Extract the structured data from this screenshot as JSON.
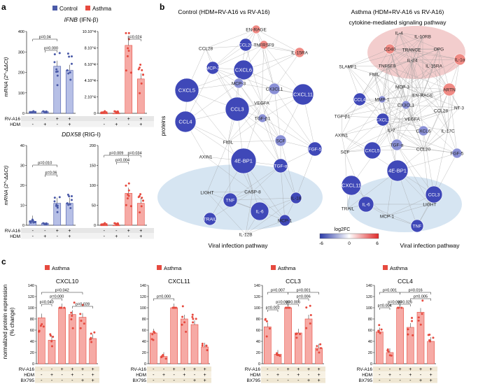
{
  "panel_labels": {
    "a": "a",
    "b": "b",
    "c": "c"
  },
  "colors": {
    "control": "#4a5aa8",
    "asthma": "#e64a3f",
    "asthma_fill": "#f6aaa5",
    "node_blue": "#3f48b8",
    "node_red": "#e8645c",
    "viral_ellipse": "#cfe0f0",
    "cyto_ellipse": "#f1c4c4"
  },
  "panel_a": {
    "legend": {
      "control": "Control",
      "asthma": "Asthma"
    },
    "ifnb": {
      "title_gene": "IFNB",
      "title_rest": " (IFN-β)",
      "ylabel": "mRNA (2^-ΔΔCt)",
      "control_ticks": [
        "0",
        "100",
        "200",
        "300",
        "400"
      ],
      "asthma_ticks": [
        "0",
        "2.10^4",
        "4.10^4",
        "6.10^4",
        "8.10^4",
        "10.10^4"
      ],
      "pvalues": [
        "p=0.04",
        "p=0.000",
        "p=0.024"
      ],
      "control_bars": [
        10,
        8,
        230,
        210
      ],
      "asthma_bars": [
        0,
        0,
        83000,
        42000
      ]
    },
    "ddx58": {
      "title_gene": "DDX58",
      "title_rest": " (RIG-I)",
      "ylabel": "mRNA (2^-ΔΔCt)",
      "control_ticks": [
        "0",
        "10",
        "20",
        "30",
        "40"
      ],
      "asthma_ticks": [
        "0",
        "50",
        "100",
        "150",
        "200"
      ],
      "pvalues": [
        "p=0.010",
        "p=0.06",
        "p=0.009",
        "p=0.004",
        "p=0.034"
      ],
      "control_bars": [
        2,
        1,
        11,
        11
      ],
      "asthma_bars": [
        0,
        0,
        80,
        55
      ]
    },
    "rows": [
      {
        "label": "RV-A16",
        "signs": [
          "-",
          "-",
          "+",
          "+"
        ]
      },
      {
        "label": "HDM",
        "signs": [
          "-",
          "+",
          "-",
          "+"
        ]
      }
    ]
  },
  "panel_b": {
    "title_left": "Control (HDM+RV-A16 vs RV-A16)",
    "title_right": "Asthma (HDM+RV-A16 vs RV-A16)",
    "cyto_label": "cytokine-mediated signaling pathway",
    "viral_label_left": "Viral infection pathway",
    "viral_label_right": "Viral infection pathway",
    "axis_label": "proteins",
    "colorbar": {
      "title": "log2FC",
      "ticks": [
        "-6",
        "0",
        "6"
      ]
    },
    "left_nodes": [
      "EN-RAGE",
      "CCL20",
      "TNFRSF9",
      "IL-15RA",
      "CCL28",
      "MCP-2",
      "CXCL6",
      "MCP-3",
      "CX3CL1",
      "CXCL5",
      "CCL3",
      "VEGFA",
      "CXCL11",
      "CCL4",
      "TGF-β1",
      "Flt3L",
      "SCF",
      "AXIN1",
      "FGF-5",
      "4E-BP1",
      "TGF-α",
      "LIGHT",
      "CASP-8",
      "TNF",
      "IL-6",
      "IL-18",
      "TRAIL",
      "MCP-1",
      "IL-12B"
    ],
    "right_nodes": [
      "IL-4",
      "IL-10RB",
      "CD40",
      "TRANCE",
      "OPG",
      "IL-24",
      "IL-1α",
      "TNFSF9",
      "IL-15RA",
      "SLAMF1",
      "Flt3L",
      "MCP-3",
      "EN-RAGE",
      "ARTN",
      "MMP-1",
      "CCL4",
      "CX3CL1",
      "NT-3",
      "TGF-β1",
      "CXCL1",
      "VEGFA",
      "CCL28",
      "IL-7",
      "CXCL6",
      "IL-17C",
      "AXIN1",
      "TGF-α",
      "SCF",
      "CXCL5",
      "CCL20",
      "FGF-5",
      "4E-BP1",
      "CXCL11",
      "CCL3",
      "IL-6",
      "LIGHT",
      "TRAIL",
      "MCP-1",
      "TNF"
    ]
  },
  "panel_c": {
    "legend": "Asthma",
    "ylabel": "normalized protein expression",
    "ylabel2": "(% change)",
    "ticks": [
      "0",
      "20",
      "40",
      "60",
      "80",
      "100",
      "120",
      "140"
    ],
    "rows": [
      {
        "label": "RV-A16",
        "signs": [
          "-",
          "-",
          "+",
          "+",
          "+",
          "+"
        ]
      },
      {
        "label": "HDM",
        "signs": [
          "-",
          "+",
          "-",
          "+",
          "-",
          "+"
        ]
      },
      {
        "label": "BX795",
        "signs": [
          "-",
          "-",
          "-",
          "-",
          "+",
          "+"
        ]
      }
    ],
    "charts": [
      {
        "title": "CXCL10",
        "values": [
          82,
          42,
          100,
          88,
          83,
          45
        ],
        "pvalues": [
          "p=0.042",
          "p=0.040",
          "p=0.000",
          "p=0.028"
        ]
      },
      {
        "title": "CXCL11",
        "values": [
          55,
          13,
          100,
          80,
          70,
          30
        ],
        "pvalues": [
          "p=0.000"
        ]
      },
      {
        "title": "CCL3",
        "values": [
          66,
          17,
          100,
          55,
          80,
          28
        ],
        "pvalues": [
          "p=0.007",
          "p=0.001",
          "p=0.002",
          "p=0.000",
          "p=0.006",
          "p=0.006"
        ]
      },
      {
        "title": "CCL4",
        "values": [
          57,
          20,
          100,
          65,
          92,
          40
        ],
        "pvalues": [
          "p=0.001",
          "p=0.016",
          "p=0.004",
          "p=0.000",
          "p=0.026",
          "p=0.005"
        ]
      }
    ]
  }
}
